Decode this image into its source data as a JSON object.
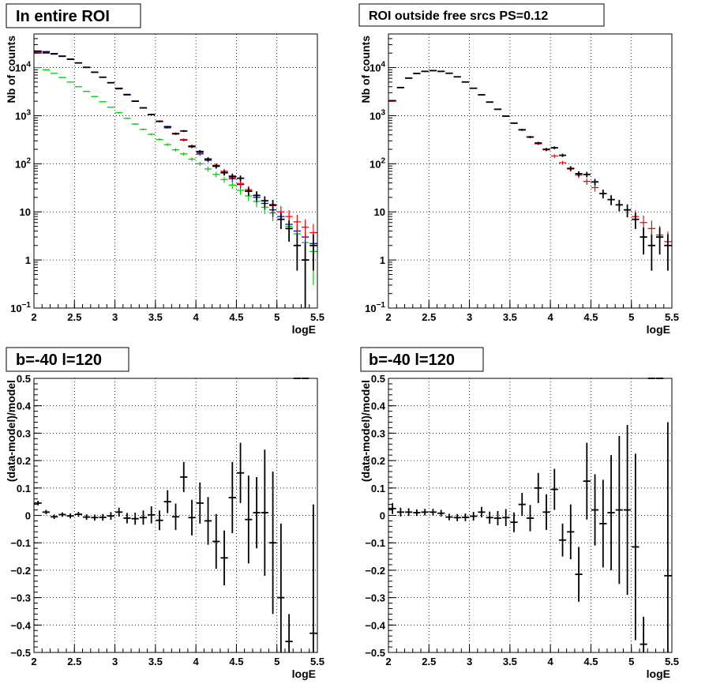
{
  "chart_data": [
    {
      "type": "scatter",
      "title": "In entire ROI",
      "xlabel": "logE",
      "ylabel": "Nb of counts",
      "xlim": [
        2,
        5.5
      ],
      "ylim": [
        0.1,
        50000
      ],
      "yscale": "log",
      "grid": true,
      "x_ticks": [
        "2",
        "2.5",
        "3",
        "3.5",
        "4",
        "4.5",
        "5",
        "5.5"
      ],
      "y_ticks": [
        {
          "value": 0.1,
          "base": "10",
          "exp": "−1"
        },
        {
          "value": 1,
          "label": "1"
        },
        {
          "value": 10,
          "label": "10"
        },
        {
          "value": 100,
          "base": "10",
          "exp": "2"
        },
        {
          "value": 1000,
          "base": "10",
          "exp": "3"
        },
        {
          "value": 10000,
          "base": "10",
          "exp": "4"
        }
      ],
      "series": [
        {
          "color": "#00cc00",
          "x": [
            2.05,
            2.15,
            2.25,
            2.35,
            2.45,
            2.55,
            2.65,
            2.75,
            2.85,
            2.95,
            3.05,
            3.15,
            3.25,
            3.35,
            3.45,
            3.55,
            3.65,
            3.75,
            3.85,
            3.95,
            4.05,
            4.15,
            4.25,
            4.35,
            4.45,
            4.55,
            4.65,
            4.75,
            4.85,
            4.95,
            5.05,
            5.15,
            5.25,
            5.35,
            5.45
          ],
          "y": [
            10000,
            9000,
            7600,
            6200,
            5000,
            4000,
            3200,
            2500,
            1950,
            1500,
            1150,
            880,
            670,
            520,
            410,
            320,
            250,
            195,
            160,
            125,
            100,
            78,
            60,
            47,
            36,
            28,
            21.5,
            16.5,
            12.5,
            9.5,
            7,
            5,
            3.5,
            2.3,
            1.5
          ],
          "err": [
            100,
            95,
            87,
            79,
            71,
            63,
            57,
            50,
            44,
            39,
            34,
            30,
            26,
            23,
            20,
            18,
            16,
            14,
            13,
            11,
            10,
            9,
            7.7,
            6.9,
            6,
            5.3,
            4.6,
            4.1,
            3.5,
            3.1,
            2.6,
            2.2,
            1.9,
            1.5,
            1.2
          ]
        },
        {
          "color": "#0000cc",
          "x": [
            2.05,
            2.15,
            2.25,
            2.35,
            2.45,
            2.55,
            2.65,
            2.75,
            2.85,
            2.95,
            3.05,
            3.15,
            3.25,
            3.35,
            3.45,
            3.55,
            3.65,
            3.75,
            3.85,
            3.95,
            4.05,
            4.15,
            4.25,
            4.35,
            4.45,
            4.55,
            4.65,
            4.75,
            4.85,
            4.95,
            5.05,
            5.15,
            5.25,
            5.35,
            5.45
          ],
          "y": [
            20000,
            20000,
            19000,
            17000,
            14800,
            12400,
            10100,
            8000,
            6300,
            4800,
            3600,
            2700,
            2000,
            1450,
            1050,
            760,
            560,
            420,
            310,
            225,
            160,
            118,
            88,
            66,
            49,
            37,
            27,
            20,
            15,
            11,
            8,
            5.5,
            4,
            3,
            2.2
          ],
          "err": [
            141,
            141,
            138,
            130,
            122,
            111,
            100,
            89,
            79,
            69,
            60,
            52,
            45,
            38,
            32,
            28,
            24,
            20,
            18,
            15,
            13,
            11,
            9.4,
            8.1,
            7,
            6.1,
            5.2,
            4.5,
            3.9,
            3.3,
            2.8,
            2.3,
            2,
            1.7,
            1.5
          ]
        },
        {
          "color": "#ff0000",
          "x": [
            2.05,
            2.15,
            2.25,
            2.35,
            2.45,
            2.55,
            2.65,
            2.75,
            2.85,
            2.95,
            3.05,
            3.15,
            3.25,
            3.35,
            3.45,
            3.55,
            3.65,
            3.75,
            3.85,
            3.95,
            4.05,
            4.15,
            4.25,
            4.35,
            4.45,
            4.55,
            4.65,
            4.75,
            4.85,
            4.95,
            5.05,
            5.15,
            5.25,
            5.35,
            5.45
          ],
          "y": [
            21000,
            21000,
            19500,
            17300,
            15000,
            12500,
            10200,
            8100,
            6350,
            4850,
            3650,
            2750,
            2020,
            1470,
            1070,
            775,
            575,
            430,
            320,
            235,
            170,
            125,
            93,
            70,
            52,
            39,
            29,
            22,
            17,
            13.5,
            10,
            8,
            6.2,
            4.8,
            3.7
          ],
          "err": [
            145,
            145,
            140,
            132,
            122,
            112,
            101,
            90,
            80,
            70,
            60,
            52,
            45,
            38,
            33,
            28,
            24,
            21,
            18,
            15,
            13,
            11,
            9.6,
            8.4,
            7.2,
            6.2,
            5.4,
            4.7,
            4.1,
            3.7,
            3.2,
            2.8,
            2.5,
            2.2,
            1.9
          ]
        },
        {
          "color": "#000000",
          "x": [
            2.05,
            2.15,
            2.25,
            2.35,
            2.45,
            2.55,
            2.65,
            2.75,
            2.85,
            2.95,
            3.05,
            3.15,
            3.25,
            3.35,
            3.45,
            3.55,
            3.65,
            3.75,
            3.85,
            3.95,
            4.05,
            4.15,
            4.25,
            4.35,
            4.45,
            4.55,
            4.65,
            4.75,
            4.85,
            4.95,
            5.05,
            5.15,
            5.25,
            5.35,
            5.45
          ],
          "y": [
            22000,
            21300,
            19400,
            17300,
            15000,
            12500,
            10100,
            8000,
            6300,
            4850,
            3700,
            2750,
            2000,
            1450,
            1060,
            760,
            590,
            420,
            480,
            230,
            180,
            125,
            90,
            65,
            55,
            50,
            27,
            22,
            17,
            14,
            7,
            4.5,
            2,
            1,
            2
          ],
          "err": [
            148,
            146,
            139,
            132,
            122,
            112,
            100,
            89,
            79,
            70,
            61,
            52,
            45,
            38,
            33,
            28,
            24,
            20,
            22,
            15,
            13,
            11,
            9.5,
            8,
            7.4,
            7,
            5.2,
            4.7,
            4.1,
            3.7,
            2.6,
            2.1,
            1.4,
            1.2,
            1.4
          ]
        }
      ]
    },
    {
      "type": "scatter",
      "title": "ROI outside free srcs PS=0.12",
      "xlabel": "logE",
      "ylabel": "Nb of counts",
      "xlim": [
        2,
        5.5
      ],
      "ylim": [
        0.1,
        50000
      ],
      "yscale": "log",
      "grid": true,
      "x_ticks": [
        "2",
        "2.5",
        "3",
        "3.5",
        "4",
        "4.5",
        "5",
        "5.5"
      ],
      "y_ticks": [
        {
          "value": 0.1,
          "base": "10",
          "exp": "−1"
        },
        {
          "value": 1,
          "label": "1"
        },
        {
          "value": 10,
          "label": "10"
        },
        {
          "value": 100,
          "base": "10",
          "exp": "2"
        },
        {
          "value": 1000,
          "base": "10",
          "exp": "3"
        },
        {
          "value": 10000,
          "base": "10",
          "exp": "4"
        }
      ],
      "series": [
        {
          "color": "#ff0000",
          "x": [
            2.05,
            2.15,
            2.25,
            2.35,
            2.45,
            2.55,
            2.65,
            2.75,
            2.85,
            2.95,
            3.05,
            3.15,
            3.25,
            3.35,
            3.45,
            3.55,
            3.65,
            3.75,
            3.85,
            3.95,
            4.05,
            4.15,
            4.25,
            4.35,
            4.45,
            4.55,
            4.65,
            4.75,
            4.85,
            4.95,
            5.05,
            5.15,
            5.25,
            5.35,
            5.45
          ],
          "y": [
            2000,
            3800,
            6000,
            7500,
            8300,
            8600,
            8300,
            7600,
            6400,
            5000,
            3700,
            2700,
            1900,
            1350,
            980,
            700,
            500,
            360,
            260,
            195,
            145,
            105,
            78,
            58,
            43,
            32,
            24,
            18,
            14,
            11,
            8,
            6,
            4.5,
            3.3,
            2.4
          ],
          "err": [
            45,
            62,
            77,
            87,
            91,
            93,
            91,
            87,
            80,
            71,
            61,
            52,
            44,
            37,
            31,
            26,
            22,
            19,
            16,
            14,
            12,
            10,
            8.8,
            7.6,
            6.6,
            5.7,
            4.9,
            4.2,
            3.7,
            3.3,
            2.8,
            2.4,
            2.1,
            1.8,
            1.5
          ]
        },
        {
          "color": "#000000",
          "x": [
            2.05,
            2.15,
            2.25,
            2.35,
            2.45,
            2.55,
            2.65,
            2.75,
            2.85,
            2.95,
            3.05,
            3.15,
            3.25,
            3.35,
            3.45,
            3.55,
            3.65,
            3.75,
            3.85,
            3.95,
            4.05,
            4.15,
            4.25,
            4.35,
            4.45,
            4.55,
            4.65,
            4.75,
            4.85,
            4.95,
            5.05,
            5.15,
            5.25,
            5.35,
            5.45
          ],
          "y": [
            2050,
            3850,
            6050,
            7550,
            8350,
            8650,
            8350,
            7620,
            6420,
            5020,
            3720,
            2720,
            1920,
            1360,
            980,
            700,
            510,
            360,
            270,
            200,
            215,
            150,
            80,
            62,
            60,
            42,
            24,
            18,
            14,
            11,
            7,
            3,
            2,
            3,
            2
          ],
          "err": [
            45,
            62,
            78,
            87,
            91,
            93,
            91,
            87,
            80,
            71,
            61,
            52,
            44,
            37,
            31,
            26,
            22,
            19,
            16,
            14,
            14,
            12,
            8.9,
            7.9,
            7.7,
            6.5,
            4.9,
            4.2,
            3.7,
            3.3,
            2.6,
            1.7,
            1.4,
            1.7,
            1.4
          ]
        }
      ]
    },
    {
      "type": "scatter",
      "title": "b=-40 l=120",
      "xlabel": "logE",
      "ylabel": "(data-model)/model",
      "xlim": [
        2,
        5.5
      ],
      "ylim": [
        -0.5,
        0.5
      ],
      "grid": true,
      "x_ticks": [
        "2",
        "2.5",
        "3",
        "3.5",
        "4",
        "4.5",
        "5",
        "5.5"
      ],
      "y_ticks": [
        "−0.5",
        "−0.4",
        "−0.3",
        "−0.2",
        "−0.1",
        "0",
        "0.1",
        "0.2",
        "0.3",
        "0.4",
        "0.5"
      ],
      "series": [
        {
          "color": "#000000",
          "x": [
            2.05,
            2.15,
            2.25,
            2.35,
            2.45,
            2.55,
            2.65,
            2.75,
            2.85,
            2.95,
            3.05,
            3.15,
            3.25,
            3.35,
            3.45,
            3.55,
            3.65,
            3.75,
            3.85,
            3.95,
            4.05,
            4.15,
            4.25,
            4.35,
            4.45,
            4.55,
            4.65,
            4.75,
            4.85,
            4.95,
            5.05,
            5.15,
            5.25,
            5.35,
            5.45
          ],
          "y": [
            0.045,
            0.012,
            -0.005,
            0.003,
            -0.002,
            0.004,
            -0.006,
            -0.008,
            -0.007,
            -0.002,
            0.012,
            -0.01,
            -0.012,
            -0.008,
            0.002,
            -0.018,
            0.05,
            -0.005,
            0.14,
            -0.008,
            0.045,
            -0.02,
            -0.095,
            -0.155,
            0.065,
            0.155,
            -0.015,
            0.01,
            0.01,
            -0.1,
            -0.3,
            -0.46,
            0.5,
            0.5,
            -0.43
          ],
          "err": [
            0.008,
            0.008,
            0.008,
            0.008,
            0.009,
            0.009,
            0.01,
            0.011,
            0.012,
            0.014,
            0.016,
            0.019,
            0.022,
            0.026,
            0.031,
            0.036,
            0.042,
            0.048,
            0.055,
            0.065,
            0.075,
            0.087,
            0.1,
            0.1,
            0.13,
            0.11,
            0.16,
            0.13,
            0.23,
            0.26,
            0.27,
            0.1,
            0,
            0,
            0.47
          ]
        }
      ]
    },
    {
      "type": "scatter",
      "title": "b=-40 l=120",
      "xlabel": "logE",
      "ylabel": "(data-model)/model",
      "xlim": [
        2,
        5.5
      ],
      "ylim": [
        -0.5,
        0.5
      ],
      "grid": true,
      "x_ticks": [
        "2",
        "2.5",
        "3",
        "3.5",
        "4",
        "4.5",
        "5",
        "5.5"
      ],
      "y_ticks": [
        "−0.5",
        "−0.4",
        "−0.3",
        "−0.2",
        "−0.1",
        "0",
        "0.1",
        "0.2",
        "0.3",
        "0.4",
        "0.5"
      ],
      "series": [
        {
          "color": "#000000",
          "x": [
            2.05,
            2.15,
            2.25,
            2.35,
            2.45,
            2.55,
            2.65,
            2.75,
            2.85,
            2.95,
            3.05,
            3.15,
            3.25,
            3.35,
            3.45,
            3.55,
            3.65,
            3.75,
            3.85,
            3.95,
            4.05,
            4.15,
            4.25,
            4.35,
            4.45,
            4.55,
            4.65,
            4.75,
            4.85,
            4.95,
            5.05,
            5.15,
            5.25,
            5.35,
            5.45
          ],
          "y": [
            0.025,
            0.012,
            0.012,
            0.01,
            0.012,
            0.012,
            0.008,
            -0.006,
            -0.008,
            -0.007,
            -0.003,
            0.012,
            -0.008,
            -0.01,
            -0.008,
            -0.025,
            0.04,
            -0.01,
            0.1,
            0.012,
            0.095,
            -0.09,
            -0.06,
            -0.215,
            0.125,
            0.02,
            -0.03,
            0.01,
            0.02,
            0.02,
            -0.115,
            -0.47,
            0.5,
            0.5,
            -0.22
          ],
          "err": [
            0.02,
            0.016,
            0.014,
            0.012,
            0.012,
            0.012,
            0.012,
            0.012,
            0.013,
            0.014,
            0.016,
            0.019,
            0.022,
            0.026,
            0.031,
            0.036,
            0.042,
            0.048,
            0.055,
            0.065,
            0.075,
            0.06,
            0.1,
            0.1,
            0.14,
            0.13,
            0.16,
            0.21,
            0.27,
            0.31,
            0.34,
            0.1,
            0,
            0,
            0.56
          ]
        }
      ]
    }
  ]
}
